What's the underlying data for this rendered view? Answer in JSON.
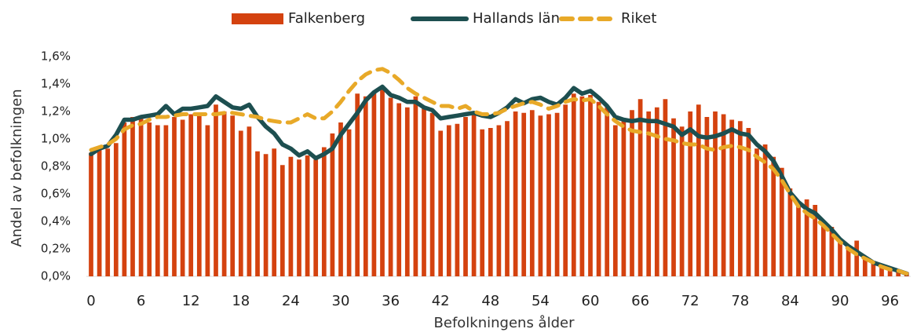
{
  "chart_data": {
    "type": "bar",
    "xlabel": "Befolkningens ålder",
    "ylabel": "Andel av befolkningen",
    "categories": [
      0,
      null,
      null,
      null,
      null,
      null,
      6,
      null,
      null,
      null,
      null,
      null,
      12,
      null,
      null,
      null,
      null,
      null,
      18,
      null,
      null,
      null,
      null,
      null,
      24,
      null,
      null,
      null,
      null,
      null,
      30,
      null,
      null,
      null,
      null,
      null,
      36,
      null,
      null,
      null,
      null,
      null,
      42,
      null,
      null,
      null,
      null,
      null,
      48,
      null,
      null,
      null,
      null,
      null,
      54,
      null,
      null,
      null,
      null,
      null,
      60,
      null,
      null,
      null,
      null,
      null,
      66,
      null,
      null,
      null,
      null,
      null,
      72,
      null,
      null,
      null,
      null,
      null,
      78,
      null,
      null,
      null,
      null,
      null,
      84,
      null,
      null,
      null,
      null,
      null,
      90,
      null,
      null,
      null,
      null,
      null,
      96,
      null,
      null
    ],
    "ylim": [
      0,
      1.6
    ],
    "yticks": [
      {
        "value": 0,
        "label": "0,0%"
      },
      {
        "value": 0.2,
        "label": "0,2%"
      },
      {
        "value": 0.4,
        "label": "0,4%"
      },
      {
        "value": 0.6,
        "label": "0,6%"
      },
      {
        "value": 0.8,
        "label": "0,8%"
      },
      {
        "value": 1.0,
        "label": "1,0%"
      },
      {
        "value": 1.2,
        "label": "1,2%"
      },
      {
        "value": 1.4,
        "label": "1,4%"
      },
      {
        "value": 1.6,
        "label": "1,6%"
      }
    ],
    "grid": false,
    "legend": "top",
    "series": [
      {
        "name": "Falkenberg",
        "type": "bar",
        "color": "#d4420f",
        "values": [
          0.9,
          0.94,
          0.93,
          0.97,
          1.12,
          1.16,
          1.17,
          1.12,
          1.1,
          1.1,
          1.16,
          1.14,
          1.18,
          1.17,
          1.1,
          1.25,
          1.2,
          1.17,
          1.06,
          1.09,
          0.91,
          0.89,
          0.93,
          0.81,
          0.87,
          0.85,
          0.88,
          0.85,
          0.94,
          1.04,
          1.12,
          1.07,
          1.33,
          1.31,
          1.34,
          1.37,
          1.3,
          1.26,
          1.23,
          1.31,
          1.22,
          1.19,
          1.06,
          1.1,
          1.11,
          1.16,
          1.19,
          1.07,
          1.08,
          1.1,
          1.13,
          1.2,
          1.19,
          1.21,
          1.17,
          1.18,
          1.19,
          1.25,
          1.33,
          1.31,
          1.32,
          1.27,
          1.23,
          1.1,
          1.13,
          1.21,
          1.29,
          1.2,
          1.23,
          1.29,
          1.15,
          1.09,
          1.2,
          1.25,
          1.16,
          1.2,
          1.18,
          1.14,
          1.13,
          1.08,
          0.93,
          0.96,
          0.87,
          0.79,
          0.64,
          0.52,
          0.56,
          0.52,
          0.37,
          0.36,
          0.25,
          0.21,
          0.26,
          0.14,
          0.11,
          0.07,
          0.06,
          0.05,
          0.03
        ]
      },
      {
        "name": "Hallands län",
        "type": "line",
        "dashed": false,
        "color": "#1d4f50",
        "values": [
          0.89,
          0.93,
          0.95,
          1.03,
          1.14,
          1.14,
          1.16,
          1.17,
          1.18,
          1.24,
          1.18,
          1.22,
          1.22,
          1.23,
          1.24,
          1.31,
          1.27,
          1.23,
          1.22,
          1.25,
          1.16,
          1.09,
          1.04,
          0.96,
          0.93,
          0.88,
          0.91,
          0.86,
          0.89,
          0.93,
          1.03,
          1.11,
          1.19,
          1.28,
          1.34,
          1.38,
          1.32,
          1.3,
          1.27,
          1.27,
          1.23,
          1.21,
          1.15,
          1.16,
          1.17,
          1.18,
          1.19,
          1.17,
          1.16,
          1.19,
          1.23,
          1.29,
          1.26,
          1.29,
          1.3,
          1.27,
          1.25,
          1.3,
          1.37,
          1.33,
          1.35,
          1.3,
          1.24,
          1.16,
          1.14,
          1.13,
          1.14,
          1.13,
          1.13,
          1.11,
          1.09,
          1.03,
          1.07,
          1.02,
          1.01,
          1.02,
          1.04,
          1.07,
          1.04,
          1.03,
          0.96,
          0.91,
          0.84,
          0.73,
          0.61,
          0.54,
          0.49,
          0.46,
          0.4,
          0.34,
          0.27,
          0.22,
          0.18,
          0.14,
          0.1,
          0.08,
          0.06,
          0.04,
          0.02
        ]
      },
      {
        "name": "Riket",
        "type": "line",
        "dashed": true,
        "color": "#e8a928",
        "values": [
          0.92,
          0.94,
          0.96,
          1.0,
          1.07,
          1.1,
          1.11,
          1.14,
          1.16,
          1.16,
          1.17,
          1.18,
          1.18,
          1.18,
          1.18,
          1.18,
          1.19,
          1.19,
          1.18,
          1.17,
          1.16,
          1.14,
          1.13,
          1.12,
          1.12,
          1.15,
          1.18,
          1.15,
          1.15,
          1.2,
          1.27,
          1.35,
          1.42,
          1.47,
          1.5,
          1.51,
          1.48,
          1.43,
          1.37,
          1.33,
          1.3,
          1.27,
          1.24,
          1.24,
          1.22,
          1.24,
          1.2,
          1.18,
          1.18,
          1.19,
          1.22,
          1.24,
          1.26,
          1.27,
          1.25,
          1.22,
          1.24,
          1.27,
          1.29,
          1.28,
          1.29,
          1.24,
          1.18,
          1.13,
          1.09,
          1.06,
          1.05,
          1.04,
          1.02,
          1.0,
          0.99,
          0.97,
          0.96,
          0.96,
          0.93,
          0.92,
          0.94,
          0.95,
          0.94,
          0.92,
          0.87,
          0.83,
          0.78,
          0.7,
          0.6,
          0.51,
          0.46,
          0.42,
          0.37,
          0.31,
          0.25,
          0.2,
          0.16,
          0.13,
          0.1,
          0.07,
          0.05,
          0.04,
          0.02
        ]
      }
    ]
  }
}
